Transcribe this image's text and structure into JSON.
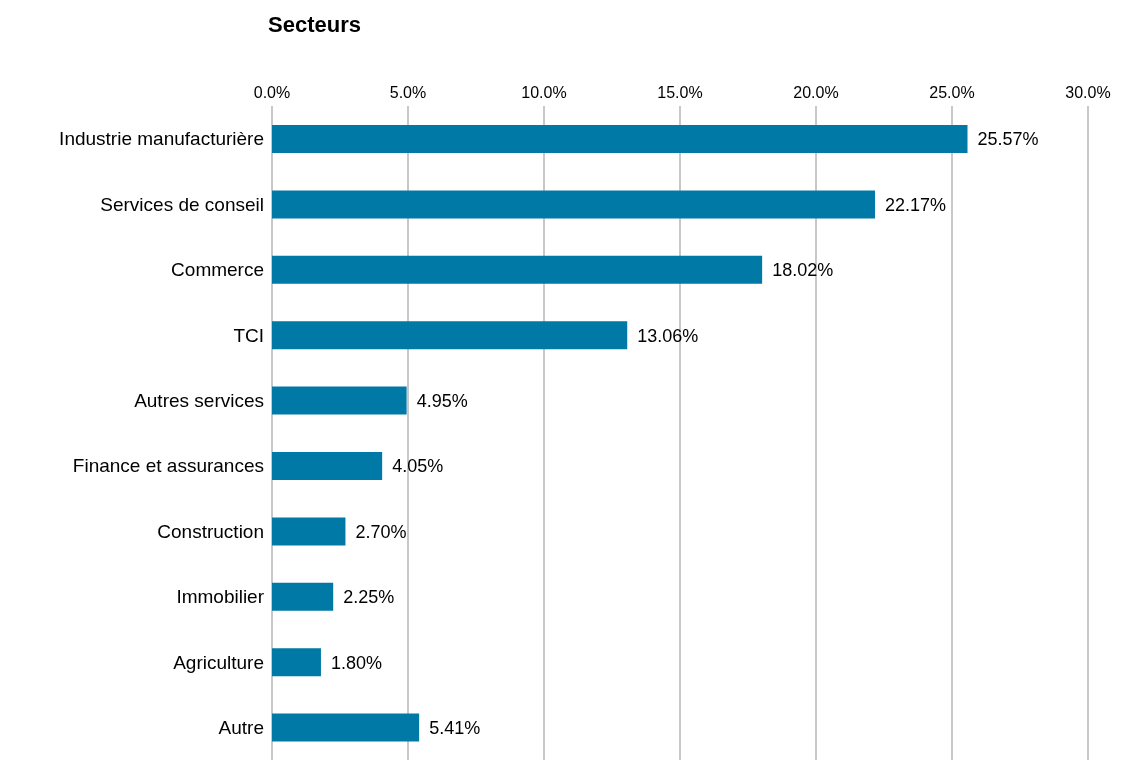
{
  "chart_data": {
    "type": "bar",
    "orientation": "horizontal",
    "title": "Secteurs",
    "categories": [
      "Industrie manufacturière",
      "Services de conseil",
      "Commerce",
      "TCI",
      "Autres services",
      "Finance et assurances",
      "Construction",
      "Immobilier",
      "Agriculture",
      "Autre"
    ],
    "values": [
      25.57,
      22.17,
      18.02,
      13.06,
      4.95,
      4.05,
      2.7,
      2.25,
      1.8,
      5.41
    ],
    "value_labels": [
      "25.57%",
      "22.17%",
      "18.02%",
      "13.06%",
      "4.95%",
      "4.05%",
      "2.70%",
      "2.25%",
      "1.80%",
      "5.41%"
    ],
    "color": "#0079a6",
    "xlim": [
      0,
      30
    ],
    "xticks": [
      {
        "value": 0,
        "label": "0.0%"
      },
      {
        "value": 5,
        "label": "5.0%"
      },
      {
        "value": 10,
        "label": "10.0%"
      },
      {
        "value": 15,
        "label": "15.0%"
      },
      {
        "value": 20,
        "label": "20.0%"
      },
      {
        "value": 25,
        "label": "25.0%"
      },
      {
        "value": 30,
        "label": "30.0%"
      }
    ],
    "grid": "x"
  }
}
